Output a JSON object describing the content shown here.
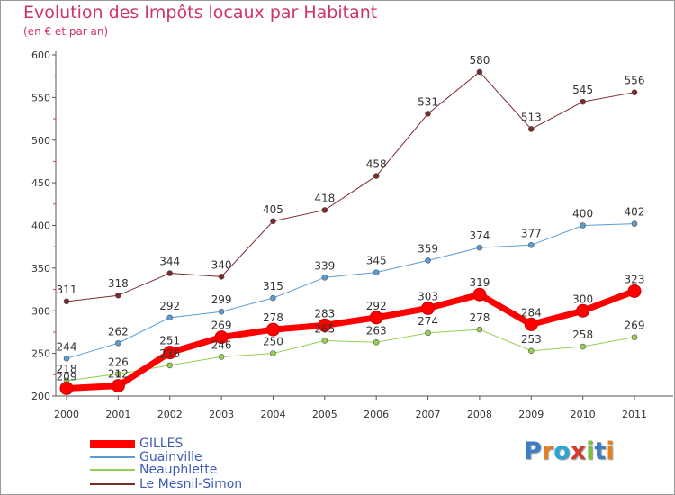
{
  "header": {
    "title": "Evolution des Impôts locaux par Habitant",
    "subtitle": "(en € et par an)"
  },
  "logo": {
    "text": "Proxiti",
    "letters": [
      "P",
      "r",
      "o",
      "x",
      "i",
      "t",
      "i"
    ],
    "colors": [
      "#3d7dc7",
      "#e67e22",
      "#2ea3d6",
      "#d63a2b",
      "#7fbf3f",
      "#3d7dc7",
      "#e67e22"
    ]
  },
  "chart_data": {
    "type": "line",
    "title": "Evolution des Impôts locaux par Habitant",
    "subtitle": "(en € et par an)",
    "xlabel": "",
    "ylabel": "",
    "x": [
      "2000",
      "2001",
      "2002",
      "2003",
      "2004",
      "2005",
      "2006",
      "2007",
      "2008",
      "2009",
      "2010",
      "2011"
    ],
    "ylim": [
      200,
      600
    ],
    "yticks": [
      "200",
      "250",
      "300",
      "350",
      "400",
      "450",
      "500",
      "550",
      "600"
    ],
    "grid": false,
    "legend": "bottom-left",
    "series": [
      {
        "name": "GILLES",
        "color": "#ff0000",
        "values": [
          209,
          212,
          251,
          269,
          278,
          283,
          292,
          303,
          319,
          284,
          300,
          323
        ],
        "labels": [
          "209",
          "212",
          "251",
          "269",
          "278",
          "283",
          "292",
          "303",
          "319",
          "284",
          "300",
          "323"
        ]
      },
      {
        "name": "Guainville",
        "color": "#5b9bd5",
        "values": [
          244,
          262,
          292,
          299,
          315,
          339,
          345,
          359,
          374,
          377,
          400,
          402
        ],
        "labels": [
          "244",
          "262",
          "292",
          "299",
          "315",
          "339",
          "345",
          "359",
          "374",
          "377",
          "400",
          "402"
        ]
      },
      {
        "name": "Neauphlette",
        "color": "#92d050",
        "values": [
          218,
          226,
          236,
          246,
          250,
          265,
          263,
          274,
          278,
          253,
          258,
          269
        ],
        "labels": [
          "218",
          "226",
          "236",
          "246",
          "250",
          "265",
          "263",
          "274",
          "278",
          "253",
          "258",
          "269"
        ]
      },
      {
        "name": "Le Mesnil-Simon",
        "color": "#7b2a2a",
        "values": [
          311,
          318,
          344,
          340,
          405,
          418,
          458,
          531,
          580,
          513,
          545,
          556
        ],
        "labels": [
          "311",
          "318",
          "344",
          "340",
          "405",
          "418",
          "458",
          "531",
          "580",
          "513",
          "545",
          "556"
        ]
      }
    ]
  }
}
